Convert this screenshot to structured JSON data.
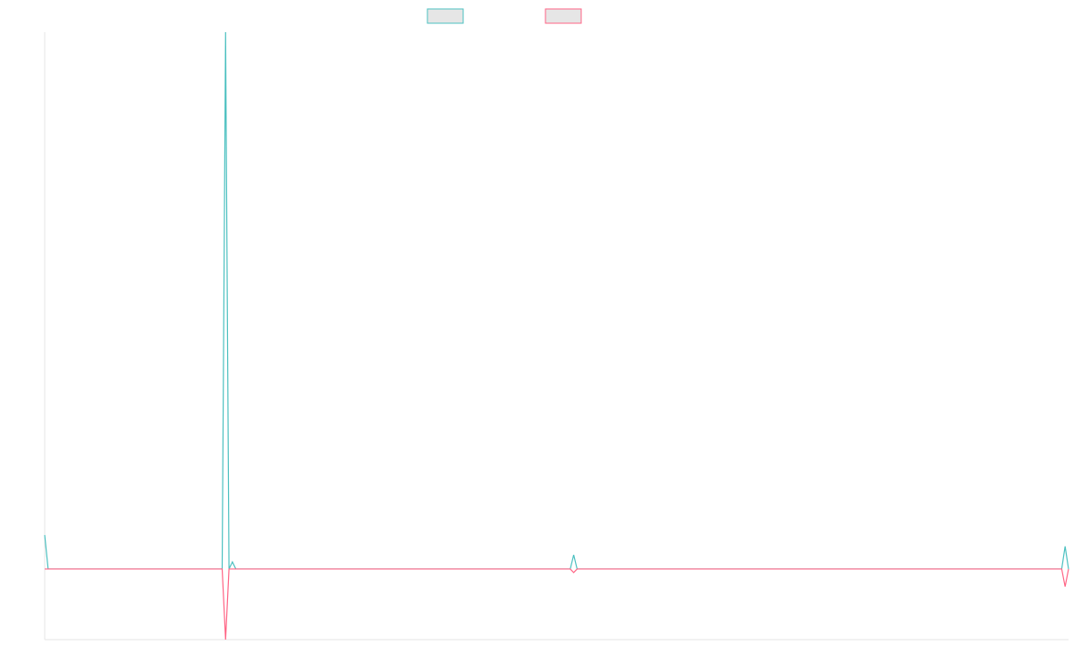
{
  "chart_data": {
    "type": "line",
    "x": [
      0,
      1,
      52,
      53,
      54,
      55,
      56,
      154,
      155,
      156,
      298,
      299,
      300
    ],
    "xlim": [
      0,
      300
    ],
    "ylim": [
      -1,
      7.6
    ],
    "legend": "top",
    "series": [
      {
        "color": "#4bc0c0",
        "values": [
          0.48,
          0,
          0,
          7.6,
          0,
          0.1,
          0,
          0,
          0.2,
          0,
          0,
          0.32,
          0
        ]
      },
      {
        "color": "#ff6384",
        "values": [
          0,
          0,
          0,
          -1,
          0,
          0,
          0,
          0,
          -0.05,
          0,
          0,
          -0.25,
          0
        ]
      }
    ]
  }
}
